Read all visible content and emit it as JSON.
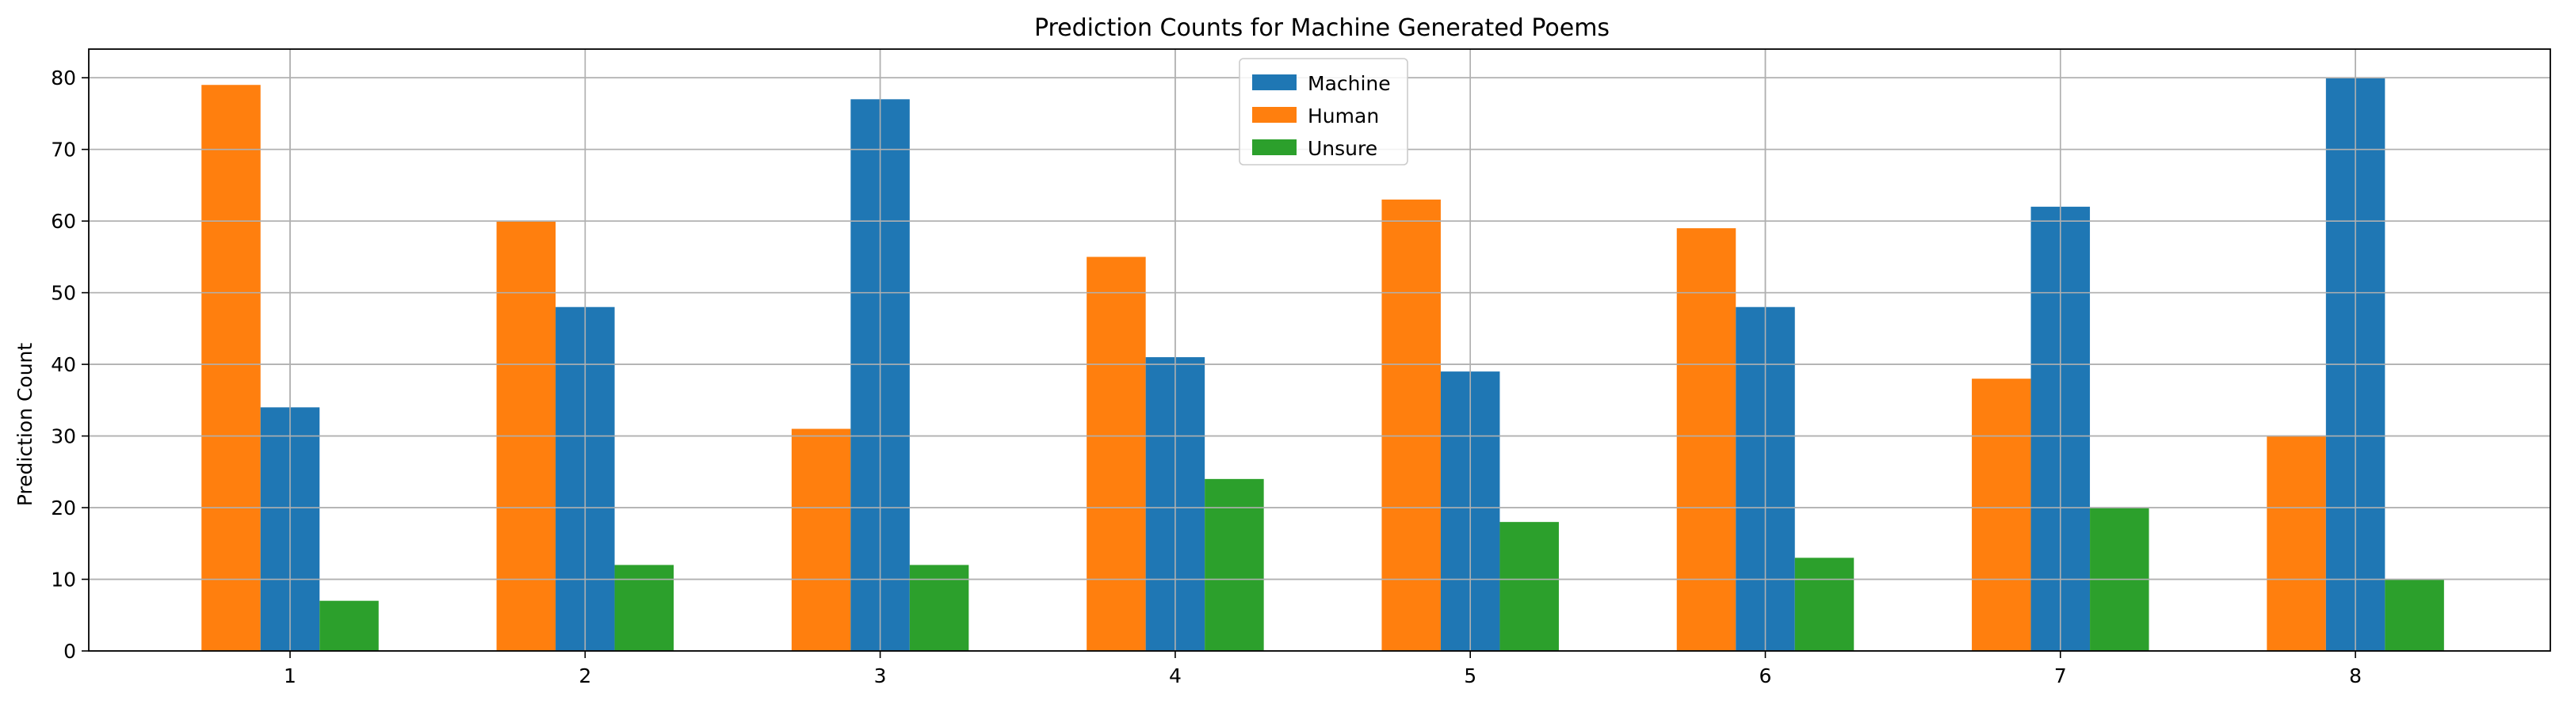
{
  "chart_data": {
    "type": "bar",
    "title": "Prediction Counts for Machine Generated Poems",
    "xlabel": "",
    "ylabel": "Prediction Count",
    "categories": [
      "1",
      "2",
      "3",
      "4",
      "5",
      "6",
      "7",
      "8"
    ],
    "series_order_drawn": [
      "Human",
      "Machine",
      "Unsure"
    ],
    "series": [
      {
        "name": "Machine",
        "color": "#1f77b4",
        "values": [
          34,
          48,
          77,
          41,
          39,
          48,
          62,
          80
        ]
      },
      {
        "name": "Human",
        "color": "#ff7f0e",
        "values": [
          79,
          60,
          31,
          55,
          63,
          59,
          38,
          30
        ]
      },
      {
        "name": "Unsure",
        "color": "#2ca02c",
        "values": [
          7,
          12,
          12,
          24,
          18,
          13,
          20,
          10
        ]
      }
    ],
    "ylim": [
      0,
      84
    ],
    "yticks": [
      0,
      10,
      20,
      30,
      40,
      50,
      60,
      70,
      80
    ],
    "grid": true,
    "legend_position": "top-center",
    "legend_entries": [
      "Machine",
      "Human",
      "Unsure"
    ]
  }
}
